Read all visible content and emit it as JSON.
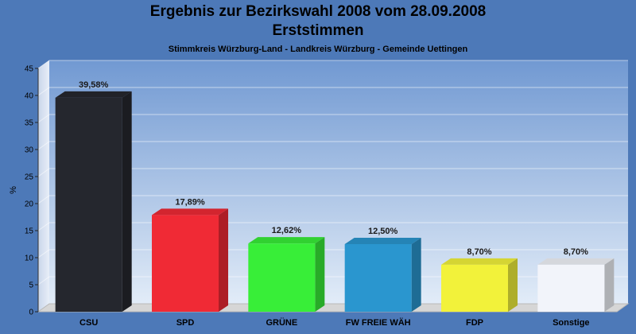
{
  "header": {
    "title_line1": "Ergebnis zur Bezirkswahl 2008 vom 28.09.2008",
    "title_line2": "Erststimmen",
    "subtitle": "Stimmkreis Würzburg-Land - Landkreis Würzburg - Gemeinde Uettingen"
  },
  "chart_data": {
    "type": "bar",
    "categories": [
      "CSU",
      "SPD",
      "GRÜNE",
      "FW FREIE WÄH",
      "FDP",
      "Sonstige"
    ],
    "values": [
      39.58,
      17.89,
      12.62,
      12.5,
      8.7,
      8.7
    ],
    "value_labels": [
      "39,58%",
      "17,89%",
      "12,62%",
      "12,50%",
      "8,70%",
      "8,70%"
    ],
    "colors": [
      "#25272e",
      "#f02a35",
      "#38ee38",
      "#2a96cf",
      "#f2f23a",
      "#f2f4fa"
    ],
    "ylabel": "%",
    "ylim": [
      0,
      45
    ],
    "yticks": [
      0,
      5,
      10,
      15,
      20,
      25,
      30,
      35,
      40,
      45
    ],
    "grid": true,
    "legend": "none"
  }
}
